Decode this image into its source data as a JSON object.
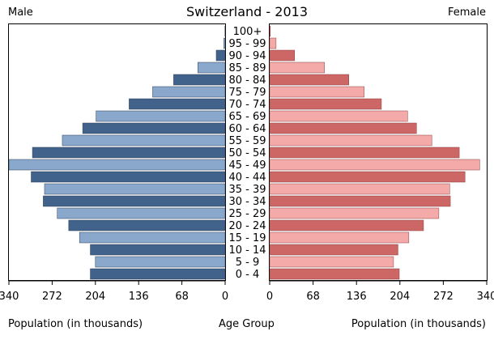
{
  "chart_data": [
    {
      "type": "bar",
      "title": "Switzerland - 2013",
      "orientation": "horizontal",
      "subtitle": "Male",
      "xlabel": "Population (in thousands)",
      "ylabel": "Age Group",
      "xlim": [
        0,
        340
      ],
      "x_reversed": true,
      "x_ticks": [
        "340",
        "272",
        "204",
        "136",
        "68",
        "0"
      ],
      "categories": [
        "100+",
        "95 - 99",
        "90 - 94",
        "85 - 89",
        "80 - 84",
        "75 - 79",
        "70 - 74",
        "65 - 69",
        "60 - 64",
        "55 - 59",
        "50 - 54",
        "45 - 49",
        "40 - 44",
        "35 - 39",
        "30 - 34",
        "25 - 29",
        "20 - 24",
        "15 - 19",
        "10 - 14",
        "5 - 9",
        "0 - 4"
      ],
      "values": [
        0.3,
        2,
        14,
        43,
        81,
        114,
        151,
        203,
        224,
        256,
        303,
        340,
        305,
        284,
        286,
        264,
        246,
        229,
        212,
        204,
        212
      ],
      "colors": [
        "#41628a",
        "#89a8cc"
      ]
    },
    {
      "type": "bar",
      "orientation": "horizontal",
      "subtitle": "Female",
      "xlabel": "Population (in thousands)",
      "xlim": [
        0,
        340
      ],
      "x_ticks": [
        "0",
        "68",
        "136",
        "204",
        "272",
        "340"
      ],
      "categories": [
        "100+",
        "95 - 99",
        "90 - 94",
        "85 - 89",
        "80 - 84",
        "75 - 79",
        "70 - 74",
        "65 - 69",
        "60 - 64",
        "55 - 59",
        "50 - 54",
        "45 - 49",
        "40 - 44",
        "35 - 39",
        "30 - 34",
        "25 - 29",
        "20 - 24",
        "15 - 19",
        "10 - 14",
        "5 - 9",
        "0 - 4"
      ],
      "values": [
        1,
        10,
        39,
        86,
        124,
        148,
        175,
        216,
        230,
        254,
        297,
        329,
        306,
        282,
        283,
        265,
        241,
        218,
        201,
        194,
        203
      ],
      "colors": [
        "#cd6766",
        "#f3aaa8"
      ]
    }
  ]
}
